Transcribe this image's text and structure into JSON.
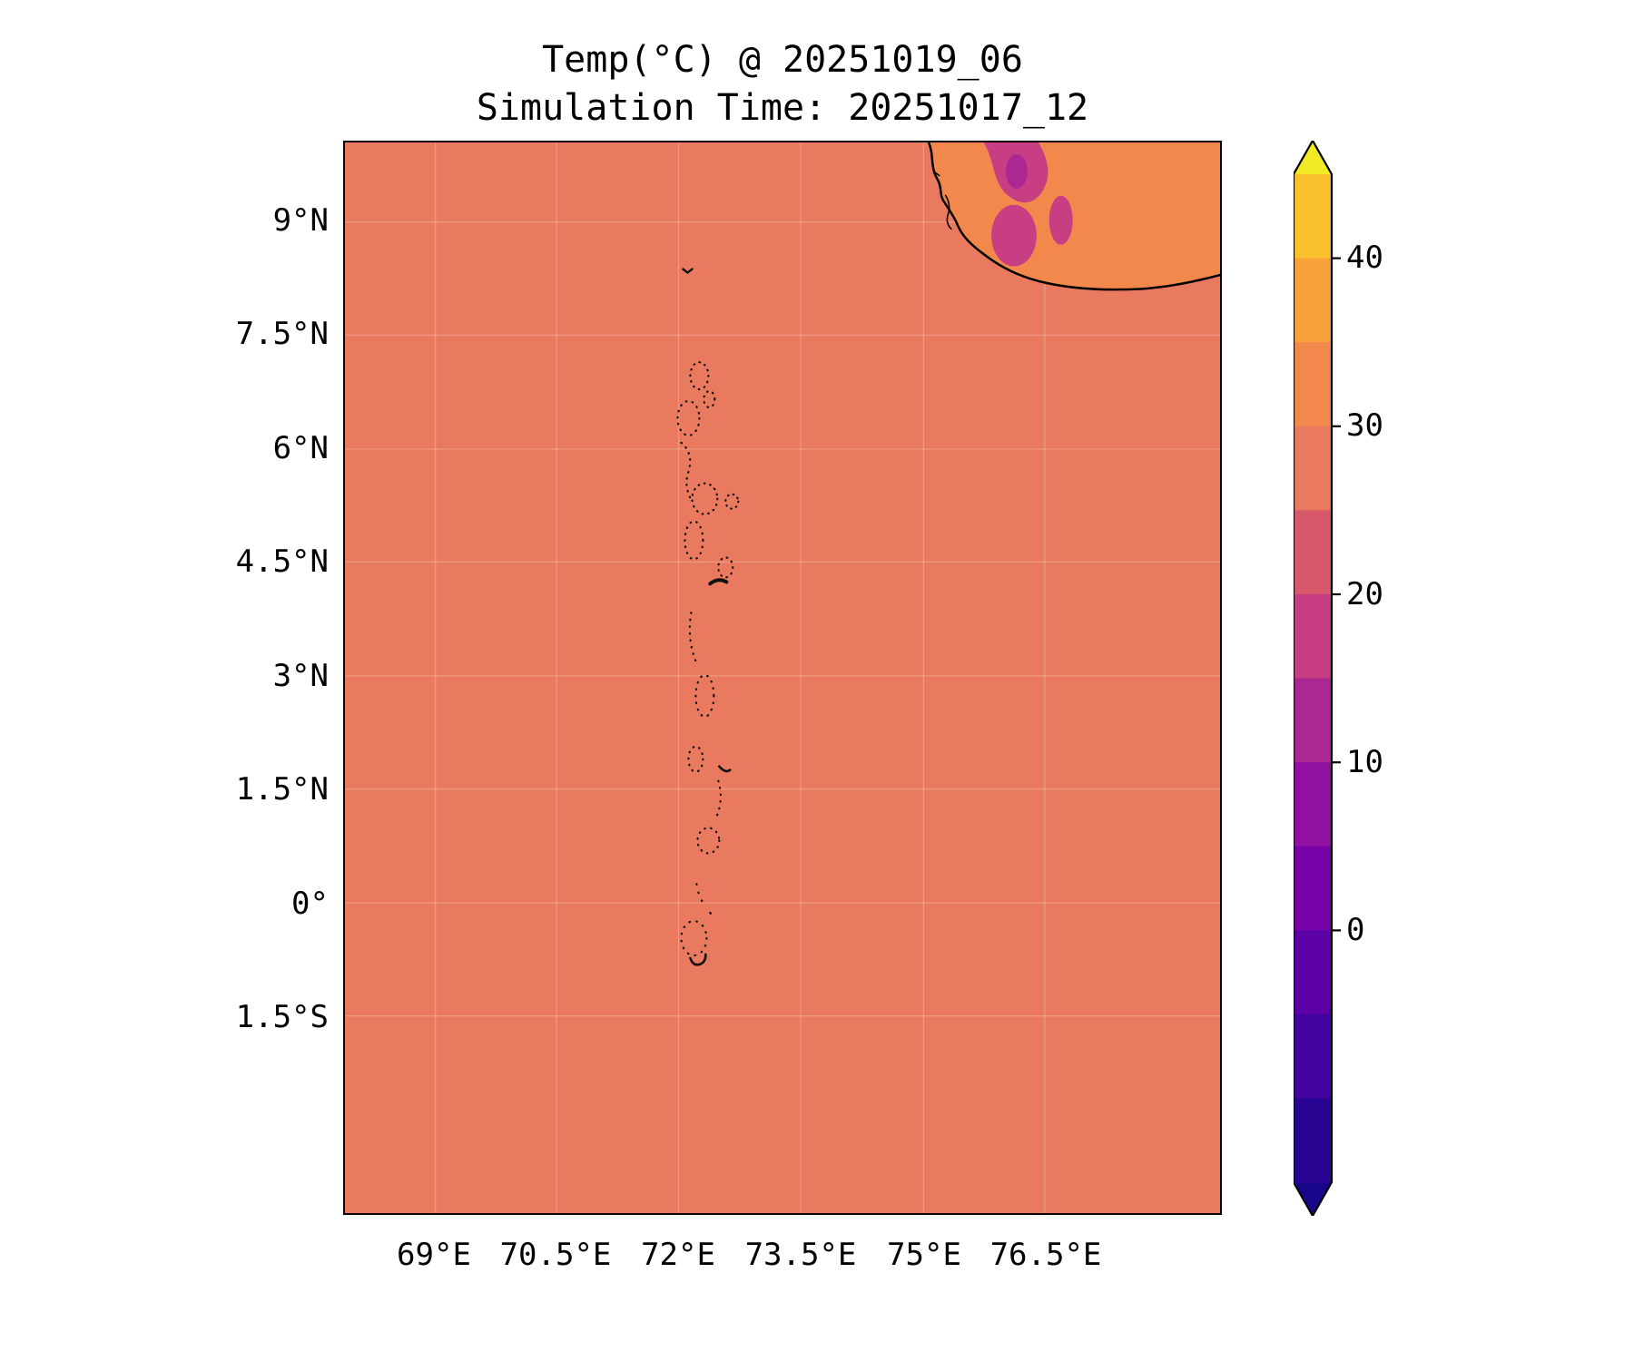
{
  "figure": {
    "title_line1": "Temp(°C) @ 20251019_06",
    "title_line2": "Simulation Time: 20251017_12"
  },
  "axes": {
    "lat_ticks": [
      "9°N",
      "7.5°N",
      "6°N",
      "4.5°N",
      "3°N",
      "1.5°N",
      "0°",
      "1.5°S"
    ],
    "lon_ticks": [
      "69°E",
      "70.5°E",
      "72°E",
      "73.5°E",
      "75°E",
      "76.5°E"
    ]
  },
  "colorbar": {
    "ticks": [
      "40",
      "30",
      "20",
      "10",
      "0"
    ],
    "colors": [
      "#fbc02d",
      "#f9a13b",
      "#f2884b",
      "#e97a5f",
      "#d9596c",
      "#c73e82",
      "#ad2793",
      "#92109f",
      "#7602a8",
      "#5c01a6",
      "#43039e",
      "#2a0593"
    ],
    "extend_over_color": "#f2ea24",
    "extend_under_color": "#17068b"
  },
  "map_colors": {
    "sea": "#e97a5f",
    "land_base": "#f2884b",
    "land_cool_patch": "#c73e82",
    "land_cooler_patch": "#ad2793",
    "coastline": "#000000"
  },
  "chart_data": {
    "type": "heatmap",
    "title": "Temp(°C) @ 20251019_06",
    "subtitle": "Simulation Time: 20251017_12",
    "variable": "Temperature (°C)",
    "extent": {
      "lon_deg_east": [
        67.9,
        78.7
      ],
      "lat_deg_north": [
        -4.1,
        10.1
      ]
    },
    "x_tick_values_deg_east": [
      69,
      70.5,
      72,
      73.5,
      75,
      76.5
    ],
    "y_tick_values_deg_north": [
      9,
      7.5,
      6,
      4.5,
      3,
      1.5,
      0,
      -1.5
    ],
    "colormap": "plasma",
    "contour_levels_celsius": [
      -15,
      -10,
      -5,
      0,
      5,
      10,
      15,
      20,
      25,
      30,
      35,
      40,
      45
    ],
    "colorbar_tick_values": [
      0,
      10,
      20,
      30,
      40
    ],
    "colorbar_extend": "both",
    "grid": "on (faint)",
    "legend_position": "colorbar right",
    "field_summary": {
      "sea_surface_band_celsius": "25–30 (uniform salmon across ocean)",
      "southwest_india_land_band_celsius": "30–35",
      "western_ghats_interior_bands_celsius": "10–25 (pink/magenta patches)"
    },
    "features": [
      "Southwest India coastline in top-right corner",
      "Maldives atoll chain as small black island outlines near 73°E running from ~8.3°N to ~0.7°S"
    ]
  }
}
